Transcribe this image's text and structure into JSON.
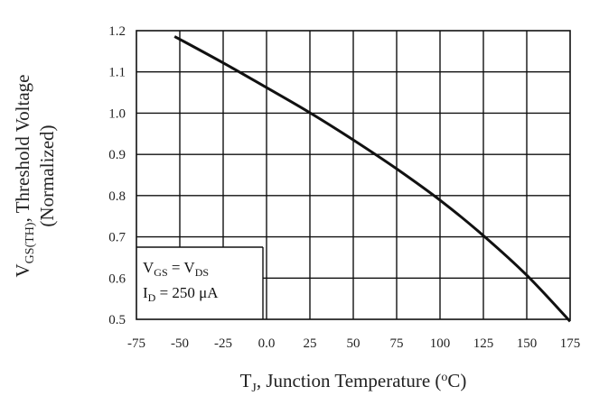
{
  "chart_data": {
    "type": "line",
    "xlabel": {
      "pre": "T",
      "sub": "J",
      "mid": ", Junction Temperature (",
      "sup": "o",
      "post": "C)"
    },
    "ylabel": {
      "pre": "V",
      "sub": "GS(TH)",
      "post": ", Threshold Voltage",
      "line2": "(Normalized)"
    },
    "x_ticks": [
      "-75",
      "-50",
      "-25",
      "0.0",
      "25",
      "50",
      "75",
      "100",
      "125",
      "150",
      "175"
    ],
    "y_ticks": [
      "0.5",
      "0.6",
      "0.7",
      "0.8",
      "0.9",
      "1.0",
      "1.1",
      "1.2"
    ],
    "xlim": [
      -75,
      175
    ],
    "ylim": [
      0.5,
      1.2
    ],
    "grid": true,
    "series": [
      {
        "x": [
          -53,
          -25,
          0,
          25,
          50,
          75,
          100,
          125,
          150,
          175
        ],
        "y": [
          1.186,
          1.122,
          1.062,
          1.001,
          0.935,
          0.865,
          0.789,
          0.703,
          0.607,
          0.495
        ]
      }
    ],
    "annotation": {
      "line1_pre": "V",
      "line1_sub": "GS",
      "line1_mid": " = V",
      "line1_sub2": "DS",
      "line2_pre": "I",
      "line2_sub": "D",
      "line2_post": " = 250 μA"
    }
  }
}
